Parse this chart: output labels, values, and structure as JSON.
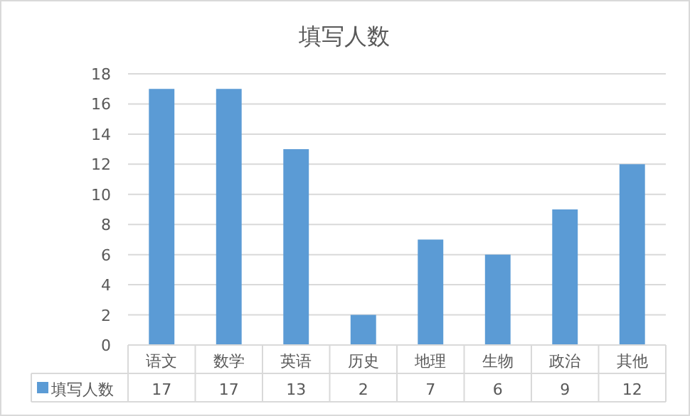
{
  "chart_data": {
    "type": "bar",
    "title": "填写人数",
    "categories": [
      "语文",
      "数学",
      "英语",
      "历史",
      "地理",
      "生物",
      "政治",
      "其他"
    ],
    "series": [
      {
        "name": "填写人数",
        "color": "#5b9bd5",
        "values": [
          17,
          17,
          13,
          2,
          7,
          6,
          9,
          12
        ]
      }
    ],
    "ylim": [
      0,
      18
    ],
    "yticks": [
      0,
      2,
      4,
      6,
      8,
      10,
      12,
      14,
      16,
      18
    ],
    "grid": "y",
    "data_labels": true,
    "legend": "bottom"
  }
}
